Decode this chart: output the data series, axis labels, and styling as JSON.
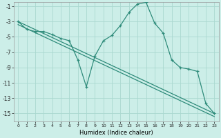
{
  "xlabel": "Humidex (Indice chaleur)",
  "bg_color": "#cceee8",
  "grid_color": "#aad8d0",
  "line_color": "#2e8b7a",
  "x_values": [
    0,
    1,
    2,
    3,
    4,
    5,
    6,
    7,
    8,
    9,
    10,
    11,
    12,
    13,
    14,
    15,
    16,
    17,
    18,
    19,
    20,
    21,
    22,
    23
  ],
  "line1_y": [
    -3.0,
    -4.0,
    -4.3,
    -4.3,
    -4.7,
    -5.2,
    -5.5,
    -8.0,
    -11.5,
    -7.5,
    -5.5,
    -4.8,
    -3.5,
    -1.8,
    -0.7,
    -0.5,
    -3.2,
    -4.5,
    -8.0,
    -9.0,
    -9.2,
    -9.5,
    -13.7,
    -15.0
  ],
  "trend1": [
    -3.0,
    -15.0
  ],
  "trend2": [
    -3.4,
    -15.4
  ],
  "trend_x": [
    0,
    23
  ],
  "ylim": [
    -16,
    -0.5
  ],
  "xlim": [
    -0.5,
    23.5
  ],
  "yticks": [
    -15,
    -13,
    -11,
    -9,
    -7,
    -5,
    -3,
    -1
  ],
  "xticks": [
    0,
    1,
    2,
    3,
    4,
    5,
    6,
    7,
    8,
    9,
    10,
    11,
    12,
    13,
    14,
    15,
    16,
    17,
    18,
    19,
    20,
    21,
    22,
    23
  ]
}
